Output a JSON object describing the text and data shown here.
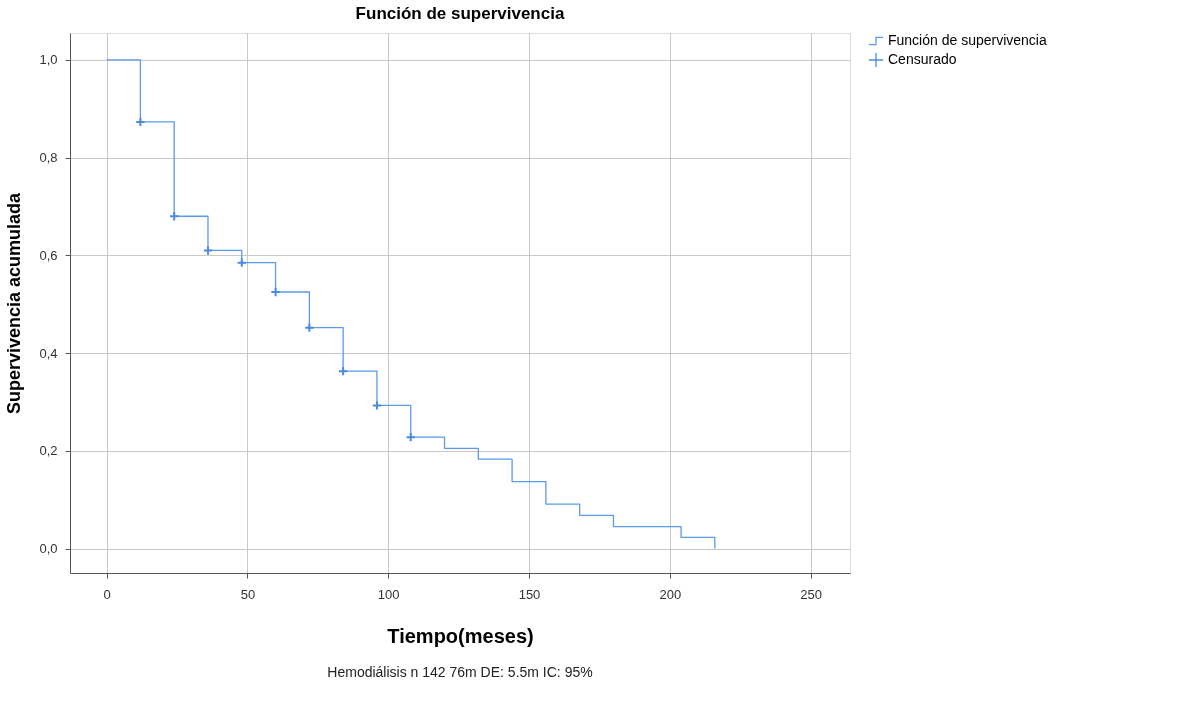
{
  "chart_data": {
    "type": "step",
    "title": "Función de supervivencia",
    "xlabel": "Tiempo(meses)",
    "ylabel": "Supervivencia acumulada",
    "annotations": [
      "Hemodiálisis    n 142     76m  DE: 5.5m   IC: 95%"
    ],
    "series": [
      {
        "name": "Función de supervivencia",
        "color": "#5b9bea",
        "x": [
          0,
          12,
          24,
          36,
          48,
          60,
          72,
          84,
          96,
          108,
          120,
          132,
          144,
          156,
          168,
          180,
          204,
          216
        ],
        "values": [
          1.0,
          0.873,
          0.68,
          0.61,
          0.585,
          0.525,
          0.452,
          0.363,
          0.293,
          0.228,
          0.205,
          0.183,
          0.137,
          0.091,
          0.068,
          0.045,
          0.023,
          0.0
        ]
      },
      {
        "name": "Censurado",
        "type": "scatter",
        "marker": "cross",
        "color": "#4a8be0",
        "x": [
          12,
          24,
          36,
          48,
          60,
          72,
          84,
          96,
          108
        ],
        "values": [
          0.873,
          0.68,
          0.61,
          0.585,
          0.525,
          0.452,
          0.363,
          0.293,
          0.228
        ]
      }
    ],
    "xlim": [
      -13,
      264
    ],
    "xticks": [
      0,
      50,
      100,
      150,
      200,
      250
    ],
    "ylim": [
      -0.05,
      1.055
    ],
    "yticks": [
      {
        "value": 0.0,
        "label": "0,0"
      },
      {
        "value": 0.2,
        "label": "0,2"
      },
      {
        "value": 0.4,
        "label": "0,4"
      },
      {
        "value": 0.6,
        "label": "0,6"
      },
      {
        "value": 0.8,
        "label": "0,8"
      },
      {
        "value": 1.0,
        "label": "1,0"
      }
    ],
    "grid": true,
    "legend": "top right"
  }
}
